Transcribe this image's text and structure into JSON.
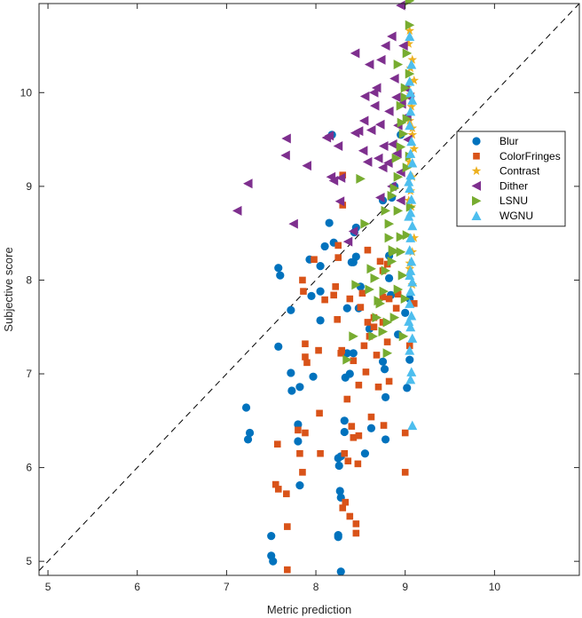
{
  "chart_data": {
    "type": "scatter",
    "xlabel": "Metric prediction",
    "ylabel": "Subjective score",
    "xlim": [
      4.9,
      10.95
    ],
    "ylim": [
      4.85,
      10.95
    ],
    "xticks": [
      5,
      6,
      7,
      8,
      9,
      10
    ],
    "yticks": [
      5,
      6,
      7,
      8,
      9,
      10
    ],
    "grid": false,
    "legend_position": "upper-right",
    "reference_line": "y = x (dashed)",
    "series": [
      {
        "name": "Blur",
        "marker": "circle",
        "color": "#0072BD",
        "points": [
          [
            7.5,
            5.27
          ],
          [
            7.5,
            5.06
          ],
          [
            7.52,
            5.0
          ],
          [
            8.28,
            4.89
          ],
          [
            7.22,
            6.64
          ],
          [
            7.24,
            6.3
          ],
          [
            7.26,
            6.37
          ],
          [
            7.58,
            8.13
          ],
          [
            7.6,
            8.05
          ],
          [
            7.58,
            7.29
          ],
          [
            7.72,
            7.68
          ],
          [
            7.72,
            7.01
          ],
          [
            7.73,
            6.82
          ],
          [
            7.8,
            6.28
          ],
          [
            7.8,
            6.46
          ],
          [
            7.82,
            6.86
          ],
          [
            7.82,
            5.81
          ],
          [
            7.93,
            8.22
          ],
          [
            7.95,
            7.83
          ],
          [
            7.97,
            6.97
          ],
          [
            8.05,
            8.15
          ],
          [
            8.05,
            7.57
          ],
          [
            8.05,
            7.88
          ],
          [
            8.1,
            8.36
          ],
          [
            8.15,
            8.61
          ],
          [
            8.2,
            8.4
          ],
          [
            8.18,
            9.55
          ],
          [
            8.25,
            6.1
          ],
          [
            8.25,
            5.28
          ],
          [
            8.25,
            5.26
          ],
          [
            8.26,
            6.02
          ],
          [
            8.27,
            5.75
          ],
          [
            8.28,
            5.68
          ],
          [
            8.28,
            6.12
          ],
          [
            8.32,
            6.38
          ],
          [
            8.32,
            6.5
          ],
          [
            8.33,
            6.96
          ],
          [
            8.35,
            7.22
          ],
          [
            8.38,
            7.0
          ],
          [
            8.4,
            8.19
          ],
          [
            8.42,
            7.22
          ],
          [
            8.42,
            8.19
          ],
          [
            8.43,
            8.51
          ],
          [
            8.45,
            8.56
          ],
          [
            8.45,
            8.25
          ],
          [
            8.48,
            7.7
          ],
          [
            8.5,
            7.93
          ],
          [
            8.55,
            6.15
          ],
          [
            8.6,
            7.48
          ],
          [
            8.62,
            6.42
          ],
          [
            8.75,
            7.13
          ],
          [
            8.75,
            8.85
          ],
          [
            8.77,
            7.05
          ],
          [
            8.78,
            6.75
          ],
          [
            8.78,
            6.3
          ],
          [
            8.82,
            8.26
          ],
          [
            8.82,
            8.02
          ],
          [
            8.84,
            7.84
          ],
          [
            8.85,
            8.88
          ],
          [
            8.88,
            9.0
          ],
          [
            8.92,
            7.42
          ],
          [
            8.95,
            9.55
          ],
          [
            9.0,
            7.65
          ],
          [
            9.02,
            6.85
          ],
          [
            9.05,
            7.8
          ],
          [
            9.05,
            7.15
          ],
          [
            8.35,
            7.7
          ]
        ]
      },
      {
        "name": "ColorFringes",
        "marker": "square",
        "color": "#D95319",
        "points": [
          [
            7.55,
            5.82
          ],
          [
            7.58,
            5.77
          ],
          [
            7.57,
            6.25
          ],
          [
            7.67,
            5.72
          ],
          [
            7.68,
            5.37
          ],
          [
            7.68,
            4.91
          ],
          [
            7.8,
            6.4
          ],
          [
            7.82,
            6.15
          ],
          [
            7.85,
            5.95
          ],
          [
            7.86,
            7.88
          ],
          [
            7.88,
            7.32
          ],
          [
            7.88,
            7.18
          ],
          [
            7.9,
            7.12
          ],
          [
            7.88,
            6.37
          ],
          [
            7.85,
            8.0
          ],
          [
            7.98,
            8.22
          ],
          [
            8.03,
            7.25
          ],
          [
            8.04,
            6.58
          ],
          [
            8.05,
            6.15
          ],
          [
            8.1,
            7.79
          ],
          [
            8.2,
            7.84
          ],
          [
            8.22,
            7.93
          ],
          [
            8.24,
            7.58
          ],
          [
            8.25,
            8.24
          ],
          [
            8.25,
            8.37
          ],
          [
            8.28,
            7.22
          ],
          [
            8.29,
            7.25
          ],
          [
            8.3,
            8.8
          ],
          [
            8.3,
            9.12
          ],
          [
            8.3,
            5.57
          ],
          [
            8.32,
            6.15
          ],
          [
            8.33,
            5.63
          ],
          [
            8.35,
            6.73
          ],
          [
            8.36,
            6.07
          ],
          [
            8.38,
            5.48
          ],
          [
            8.38,
            7.8
          ],
          [
            8.4,
            6.44
          ],
          [
            8.42,
            7.14
          ],
          [
            8.42,
            6.32
          ],
          [
            8.45,
            5.3
          ],
          [
            8.45,
            5.4
          ],
          [
            8.47,
            6.04
          ],
          [
            8.48,
            6.34
          ],
          [
            8.48,
            6.88
          ],
          [
            8.5,
            7.71
          ],
          [
            8.52,
            7.86
          ],
          [
            8.54,
            7.3
          ],
          [
            8.56,
            7.02
          ],
          [
            8.58,
            8.32
          ],
          [
            8.58,
            7.55
          ],
          [
            8.6,
            7.4
          ],
          [
            8.62,
            6.54
          ],
          [
            8.65,
            7.6
          ],
          [
            8.65,
            7.5
          ],
          [
            8.68,
            7.2
          ],
          [
            8.7,
            6.86
          ],
          [
            8.72,
            8.2
          ],
          [
            8.75,
            8.1
          ],
          [
            8.75,
            7.82
          ],
          [
            8.75,
            7.55
          ],
          [
            8.76,
            6.45
          ],
          [
            8.8,
            8.17
          ],
          [
            8.8,
            7.34
          ],
          [
            8.82,
            6.92
          ],
          [
            8.82,
            7.8
          ],
          [
            8.9,
            7.7
          ],
          [
            8.92,
            7.85
          ],
          [
            9.0,
            5.95
          ],
          [
            9.0,
            6.37
          ],
          [
            9.05,
            7.3
          ],
          [
            9.1,
            7.75
          ]
        ]
      },
      {
        "name": "Contrast",
        "marker": "star",
        "color": "#EDB120",
        "points": [
          [
            9.05,
            10.66
          ],
          [
            9.08,
            10.35
          ],
          [
            9.06,
            10.26
          ],
          [
            9.1,
            10.13
          ],
          [
            9.06,
            9.98
          ],
          [
            9.07,
            9.85
          ],
          [
            9.05,
            9.7
          ],
          [
            9.08,
            9.55
          ],
          [
            9.1,
            9.4
          ],
          [
            9.05,
            9.26
          ],
          [
            9.08,
            9.1
          ],
          [
            9.06,
            8.95
          ],
          [
            9.07,
            8.78
          ],
          [
            9.1,
            8.45
          ],
          [
            9.08,
            8.3
          ],
          [
            9.05,
            8.12
          ],
          [
            9.08,
            7.95
          ],
          [
            9.04,
            10.52
          ],
          [
            9.02,
            10.05
          ],
          [
            8.98,
            9.92
          ],
          [
            9.08,
            9.62
          ],
          [
            9.04,
            8.85
          ],
          [
            9.05,
            8.18
          ]
        ]
      },
      {
        "name": "Dither",
        "marker": "triangle-left",
        "color": "#7E2F8E",
        "points": [
          [
            7.12,
            8.74
          ],
          [
            7.24,
            9.03
          ],
          [
            7.67,
            9.51
          ],
          [
            7.66,
            9.33
          ],
          [
            7.75,
            8.6
          ],
          [
            7.9,
            9.22
          ],
          [
            8.15,
            9.54
          ],
          [
            8.17,
            9.1
          ],
          [
            8.2,
            9.06
          ],
          [
            8.12,
            9.52
          ],
          [
            8.25,
            9.43
          ],
          [
            8.28,
            9.09
          ],
          [
            8.27,
            8.84
          ],
          [
            8.36,
            8.41
          ],
          [
            8.44,
            10.42
          ],
          [
            8.54,
            9.7
          ],
          [
            8.55,
            9.96
          ],
          [
            8.6,
            10.3
          ],
          [
            8.48,
            9.59
          ],
          [
            8.44,
            9.57
          ],
          [
            8.65,
            10.0
          ],
          [
            8.7,
            9.3
          ],
          [
            8.72,
            8.88
          ],
          [
            8.75,
            9.2
          ],
          [
            8.78,
            10.5
          ],
          [
            8.82,
            9.8
          ],
          [
            8.85,
            10.6
          ],
          [
            8.88,
            10.15
          ],
          [
            8.9,
            9.95
          ],
          [
            8.92,
            9.65
          ],
          [
            8.95,
            10.93
          ],
          [
            8.98,
            10.5
          ],
          [
            9.0,
            10.05
          ],
          [
            9.02,
            9.75
          ],
          [
            9.03,
            9.5
          ],
          [
            8.95,
            9.15
          ],
          [
            8.85,
            9.0
          ],
          [
            8.95,
            8.85
          ],
          [
            9.05,
            9.95
          ],
          [
            8.66,
            9.86
          ],
          [
            8.72,
            9.66
          ],
          [
            8.68,
            10.05
          ],
          [
            8.73,
            10.35
          ],
          [
            8.76,
            9.43
          ],
          [
            8.58,
            9.26
          ],
          [
            8.81,
            9.25
          ],
          [
            8.86,
            9.45
          ],
          [
            8.91,
            9.35
          ],
          [
            8.96,
            9.88
          ],
          [
            8.42,
            8.52
          ],
          [
            8.53,
            9.38
          ],
          [
            8.62,
            9.6
          ]
        ]
      },
      {
        "name": "LSNU",
        "marker": "triangle-right",
        "color": "#77AC30",
        "points": [
          [
            9.05,
            10.98
          ],
          [
            9.05,
            10.72
          ],
          [
            9.02,
            10.42
          ],
          [
            9.05,
            10.2
          ],
          [
            9.0,
            10.05
          ],
          [
            8.95,
            9.86
          ],
          [
            9.02,
            9.72
          ],
          [
            8.98,
            9.56
          ],
          [
            8.95,
            9.42
          ],
          [
            9.05,
            9.32
          ],
          [
            9.02,
            9.2
          ],
          [
            8.92,
            9.1
          ],
          [
            8.88,
            8.98
          ],
          [
            8.85,
            8.9
          ],
          [
            8.78,
            8.74
          ],
          [
            8.82,
            8.45
          ],
          [
            8.82,
            8.6
          ],
          [
            8.95,
            8.46
          ],
          [
            8.95,
            8.3
          ],
          [
            8.85,
            8.2
          ],
          [
            8.78,
            8.1
          ],
          [
            8.76,
            7.88
          ],
          [
            8.7,
            7.78
          ],
          [
            8.72,
            7.75
          ],
          [
            8.68,
            7.6
          ],
          [
            8.64,
            7.4
          ],
          [
            8.5,
            9.08
          ],
          [
            8.45,
            7.95
          ],
          [
            8.55,
            8.6
          ],
          [
            8.42,
            7.4
          ],
          [
            8.35,
            7.15
          ],
          [
            8.6,
            7.9
          ],
          [
            8.75,
            7.45
          ],
          [
            8.8,
            7.22
          ],
          [
            8.88,
            7.6
          ],
          [
            8.92,
            7.9
          ],
          [
            8.98,
            7.4
          ],
          [
            9.0,
            7.8
          ],
          [
            8.97,
            8.05
          ],
          [
            9.02,
            8.48
          ],
          [
            8.86,
            8.32
          ],
          [
            8.9,
            9.3
          ],
          [
            8.96,
            9.68
          ],
          [
            9.0,
            9.95
          ],
          [
            8.92,
            10.3
          ],
          [
            9.06,
            8.78
          ],
          [
            8.92,
            8.74
          ],
          [
            8.87,
            8.3
          ],
          [
            8.62,
            8.12
          ],
          [
            8.66,
            8.02
          ],
          [
            8.8,
            7.55
          ]
        ]
      },
      {
        "name": "WGNU",
        "marker": "triangle-up",
        "color": "#4DBEEE",
        "points": [
          [
            9.05,
            10.6
          ],
          [
            9.07,
            10.3
          ],
          [
            9.05,
            10.12
          ],
          [
            9.06,
            10.0
          ],
          [
            9.08,
            9.92
          ],
          [
            9.06,
            9.8
          ],
          [
            9.05,
            9.65
          ],
          [
            9.07,
            9.48
          ],
          [
            9.06,
            9.35
          ],
          [
            9.08,
            9.25
          ],
          [
            9.06,
            9.12
          ],
          [
            9.05,
            8.98
          ],
          [
            9.07,
            8.86
          ],
          [
            9.06,
            8.72
          ],
          [
            9.08,
            8.58
          ],
          [
            9.06,
            8.45
          ],
          [
            9.05,
            8.32
          ],
          [
            9.07,
            8.2
          ],
          [
            9.06,
            8.1
          ],
          [
            9.08,
            7.98
          ],
          [
            9.06,
            7.88
          ],
          [
            9.05,
            7.75
          ],
          [
            9.07,
            7.62
          ],
          [
            9.06,
            7.5
          ],
          [
            9.08,
            7.38
          ],
          [
            9.05,
            7.25
          ],
          [
            9.07,
            7.02
          ],
          [
            9.06,
            6.94
          ],
          [
            9.08,
            6.45
          ],
          [
            9.04,
            8.68
          ],
          [
            9.05,
            8.05
          ],
          [
            9.04,
            7.56
          ],
          [
            9.04,
            9.05
          ]
        ]
      }
    ]
  }
}
